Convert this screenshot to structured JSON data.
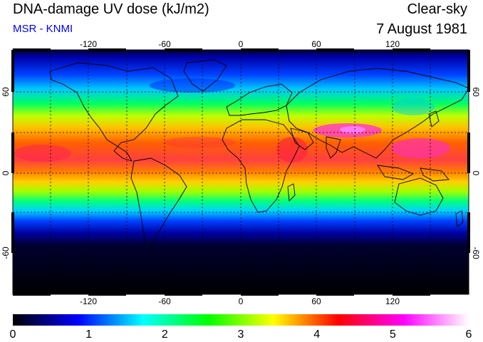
{
  "header": {
    "title": "DNA-damage UV dose (kJ/m2)",
    "source": "MSR - KNMI",
    "sky_condition": "Clear-sky",
    "date": "7 August 1981"
  },
  "map": {
    "lon_ticks": [
      "-120",
      "-60",
      "0",
      "60",
      "120"
    ],
    "lat_ticks": [
      "60",
      "0",
      "-60"
    ],
    "colors": {
      "land_outline": "#000000",
      "grid": "#000000"
    }
  },
  "colorbar": {
    "labels": [
      "0",
      "1",
      "2",
      "3",
      "4",
      "5",
      "6"
    ],
    "min": 0,
    "max": 6,
    "stops": [
      "#000000",
      "#0000ff",
      "#00ffff",
      "#00ff00",
      "#ffff00",
      "#ff0000",
      "#ff00ff",
      "#ffffff"
    ]
  }
}
